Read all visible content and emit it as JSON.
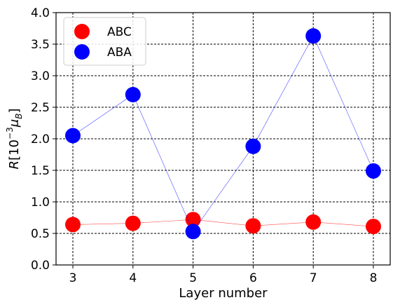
{
  "chart_data": {
    "type": "line",
    "title": "",
    "xlabel": "Layer number",
    "ylabel": "R[10⁻³μ_B]",
    "x": [
      3,
      4,
      5,
      6,
      7,
      8
    ],
    "xlim": [
      2.72,
      8.28
    ],
    "ylim": [
      0.0,
      4.0
    ],
    "yticks": [
      0.0,
      0.5,
      1.0,
      1.5,
      2.0,
      2.5,
      3.0,
      3.5,
      4.0
    ],
    "ytick_labels": [
      "0.0",
      "0.5",
      "1.0",
      "1.5",
      "2.0",
      "2.5",
      "3.0",
      "3.5",
      "4.0"
    ],
    "xtick_labels": [
      "3",
      "4",
      "5",
      "6",
      "7",
      "8"
    ],
    "grid": true,
    "grid_style": "dashed",
    "legend_position": "top-left",
    "series": [
      {
        "name": "ABC",
        "color": "#ff0000",
        "values": [
          0.64,
          0.66,
          0.72,
          0.62,
          0.68,
          0.61
        ]
      },
      {
        "name": "ABA",
        "color": "#0000ff",
        "values": [
          2.05,
          2.7,
          0.53,
          1.88,
          3.63,
          1.49
        ]
      }
    ]
  }
}
